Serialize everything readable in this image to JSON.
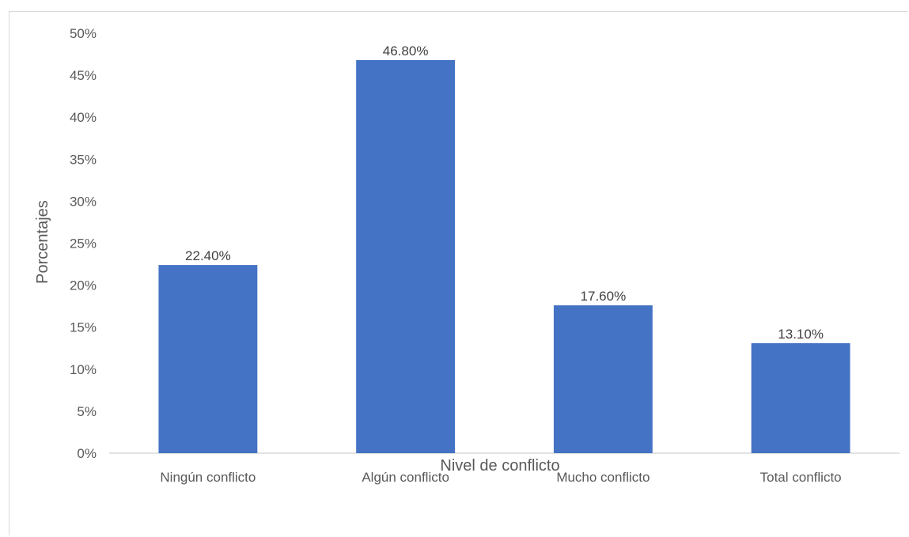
{
  "chart_data": {
    "type": "bar",
    "categories": [
      "Ningún conflicto",
      "Algún conflicto",
      "Mucho conflicto",
      "Total conflicto"
    ],
    "values": [
      22.4,
      46.8,
      17.6,
      13.1
    ],
    "data_labels": [
      "22.40%",
      "46.80%",
      "17.60%",
      "13.10%"
    ],
    "y_ticks": [
      "0%",
      "5%",
      "10%",
      "15%",
      "20%",
      "25%",
      "30%",
      "35%",
      "40%",
      "45%",
      "50%"
    ],
    "ylim": [
      0,
      50
    ],
    "xlabel": "Nivel de conflicto",
    "ylabel": "Porcentajes",
    "bar_color": "#4472C4",
    "grid": false,
    "legend": "none"
  }
}
